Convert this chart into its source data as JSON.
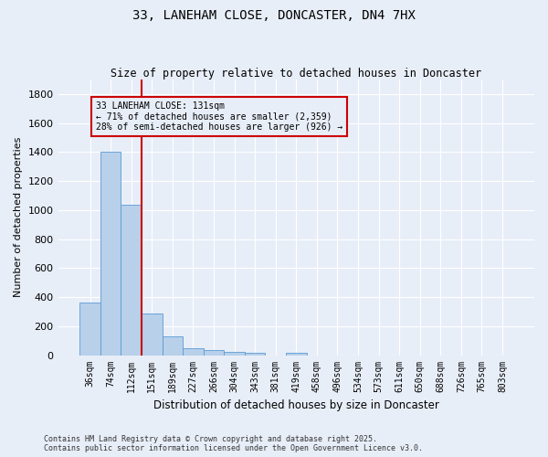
{
  "title": "33, LANEHAM CLOSE, DONCASTER, DN4 7HX",
  "subtitle": "Size of property relative to detached houses in Doncaster",
  "xlabel": "Distribution of detached houses by size in Doncaster",
  "ylabel": "Number of detached properties",
  "footer_line1": "Contains HM Land Registry data © Crown copyright and database right 2025.",
  "footer_line2": "Contains public sector information licensed under the Open Government Licence v3.0.",
  "categories": [
    "36sqm",
    "74sqm",
    "112sqm",
    "151sqm",
    "189sqm",
    "227sqm",
    "266sqm",
    "304sqm",
    "343sqm",
    "381sqm",
    "419sqm",
    "458sqm",
    "496sqm",
    "534sqm",
    "573sqm",
    "611sqm",
    "650sqm",
    "688sqm",
    "726sqm",
    "765sqm",
    "803sqm"
  ],
  "values": [
    360,
    1400,
    1035,
    290,
    130,
    45,
    35,
    25,
    18,
    0,
    18,
    0,
    0,
    0,
    0,
    0,
    0,
    0,
    0,
    0,
    0
  ],
  "bar_color": "#b8d0ea",
  "bar_edge_color": "#5b9bd5",
  "ylim": [
    0,
    1900
  ],
  "yticks": [
    0,
    200,
    400,
    600,
    800,
    1000,
    1200,
    1400,
    1600,
    1800
  ],
  "property_line_x": 2.5,
  "annotation_text_line1": "33 LANEHAM CLOSE: 131sqm",
  "annotation_text_line2": "← 71% of detached houses are smaller (2,359)",
  "annotation_text_line3": "28% of semi-detached houses are larger (926) →",
  "red_line_color": "#cc0000",
  "annotation_border_color": "#cc0000",
  "background_color": "#e8eef8",
  "grid_color": "#ffffff",
  "title_fontsize": 10,
  "subtitle_fontsize": 8.5,
  "ylabel_fontsize": 8,
  "xlabel_fontsize": 8.5,
  "footer_fontsize": 6,
  "xtick_fontsize": 7,
  "ytick_fontsize": 8,
  "annotation_fontsize": 7
}
